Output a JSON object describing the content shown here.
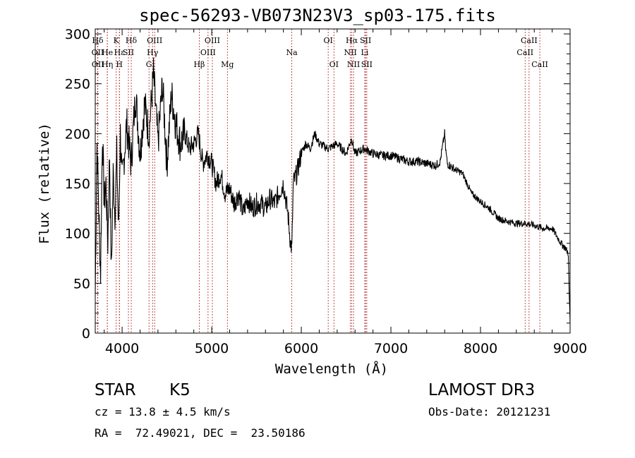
{
  "chart_data": {
    "type": "line",
    "title": "spec-56293-VB073N23V3_sp03-175.fits",
    "xlabel": "Wavelength (Å)",
    "ylabel": "Flux (relative)",
    "xlim": [
      3700,
      9000
    ],
    "ylim": [
      0,
      305
    ],
    "x_ticks": [
      4000,
      5000,
      6000,
      7000,
      8000,
      9000
    ],
    "x_tick_labels": [
      "4000",
      "5000",
      "6000",
      "7000",
      "8000",
      "9000"
    ],
    "y_ticks": [
      0,
      50,
      100,
      150,
      200,
      250,
      300
    ],
    "y_tick_labels": [
      "0",
      "50",
      "100",
      "150",
      "200",
      "250",
      "300"
    ],
    "line_color": "#000000",
    "marker_color": "#b22222",
    "series": [
      {
        "name": "spectrum",
        "x": [
          3700,
          3720,
          3740,
          3760,
          3780,
          3800,
          3820,
          3840,
          3860,
          3880,
          3900,
          3920,
          3940,
          3960,
          3980,
          4000,
          4050,
          4100,
          4150,
          4200,
          4250,
          4300,
          4350,
          4400,
          4450,
          4500,
          4550,
          4600,
          4650,
          4700,
          4750,
          4800,
          4850,
          4900,
          4950,
          5000,
          5050,
          5100,
          5150,
          5200,
          5250,
          5300,
          5350,
          5400,
          5450,
          5500,
          5550,
          5600,
          5650,
          5700,
          5750,
          5800,
          5850,
          5880,
          5895,
          5910,
          5950,
          6000,
          6050,
          6100,
          6150,
          6200,
          6300,
          6400,
          6500,
          6560,
          6600,
          6700,
          6800,
          6900,
          7000,
          7100,
          7200,
          7300,
          7400,
          7500,
          7550,
          7600,
          7610,
          7630,
          7700,
          7800,
          7850,
          7900,
          8000,
          8100,
          8200,
          8300,
          8400,
          8500,
          8600,
          8700,
          8800,
          8900,
          8950,
          8980,
          8990,
          9000
        ],
        "y": [
          40,
          190,
          120,
          60,
          200,
          130,
          150,
          90,
          180,
          60,
          160,
          120,
          180,
          100,
          200,
          150,
          210,
          170,
          240,
          180,
          230,
          200,
          260,
          190,
          250,
          170,
          240,
          210,
          190,
          200,
          185,
          190,
          200,
          170,
          180,
          170,
          150,
          160,
          140,
          145,
          130,
          140,
          120,
          135,
          125,
          130,
          130,
          125,
          135,
          130,
          140,
          150,
          120,
          90,
          85,
          150,
          160,
          180,
          190,
          185,
          200,
          190,
          185,
          190,
          180,
          195,
          180,
          185,
          180,
          178,
          178,
          175,
          172,
          172,
          170,
          168,
          172,
          200,
          185,
          170,
          165,
          160,
          150,
          140,
          132,
          125,
          115,
          112,
          110,
          110,
          108,
          105,
          105,
          90,
          85,
          80,
          40,
          10
        ]
      }
    ],
    "line_markers": [
      {
        "label": "Hδ",
        "x": 3727,
        "row": 0
      },
      {
        "label": "OII",
        "x": 3727,
        "row": 1
      },
      {
        "label": "OII",
        "x": 3729,
        "row": 2
      },
      {
        "label": "He",
        "x": 3835,
        "row": 1
      },
      {
        "label": "Hη",
        "x": 3835,
        "row": 2
      },
      {
        "label": "K",
        "x": 3934,
        "row": 0
      },
      {
        "label": "H",
        "x": 3969,
        "row": 2
      },
      {
        "label": "Hε",
        "x": 3970,
        "row": 1
      },
      {
        "label": "SII",
        "x": 4070,
        "row": 1
      },
      {
        "label": "Hδ",
        "x": 4102,
        "row": 0
      },
      {
        "label": "G",
        "x": 4300,
        "row": 2
      },
      {
        "label": "OIII",
        "x": 4363,
        "row": 0
      },
      {
        "label": "Hγ",
        "x": 4340,
        "row": 1
      },
      {
        "label": "Hβ",
        "x": 4861,
        "row": 2
      },
      {
        "label": "OIII",
        "x": 4959,
        "row": 1
      },
      {
        "label": "OIII",
        "x": 5007,
        "row": 0
      },
      {
        "label": "Mg",
        "x": 5175,
        "row": 2
      },
      {
        "label": "Na",
        "x": 5894,
        "row": 1
      },
      {
        "label": "OI",
        "x": 6300,
        "row": 0
      },
      {
        "label": "OI",
        "x": 6364,
        "row": 2
      },
      {
        "label": "NII",
        "x": 6548,
        "row": 1
      },
      {
        "label": "Hα",
        "x": 6563,
        "row": 0
      },
      {
        "label": "NII",
        "x": 6583,
        "row": 2
      },
      {
        "label": "Li",
        "x": 6708,
        "row": 1
      },
      {
        "label": "SII",
        "x": 6717,
        "row": 0
      },
      {
        "label": "SII",
        "x": 6731,
        "row": 2
      },
      {
        "label": "CaII",
        "x": 8498,
        "row": 1
      },
      {
        "label": "CaII",
        "x": 8542,
        "row": 0
      },
      {
        "label": "CaII",
        "x": 8662,
        "row": 2
      }
    ]
  },
  "info": {
    "class": "STAR",
    "subclass": "K5",
    "survey": "LAMOST DR3",
    "cz": "cz = 13.8 ± 4.5 km/s",
    "obs_date": "Obs-Date: 20121231",
    "coords": "RA =  72.49021, DEC =  23.50186"
  }
}
